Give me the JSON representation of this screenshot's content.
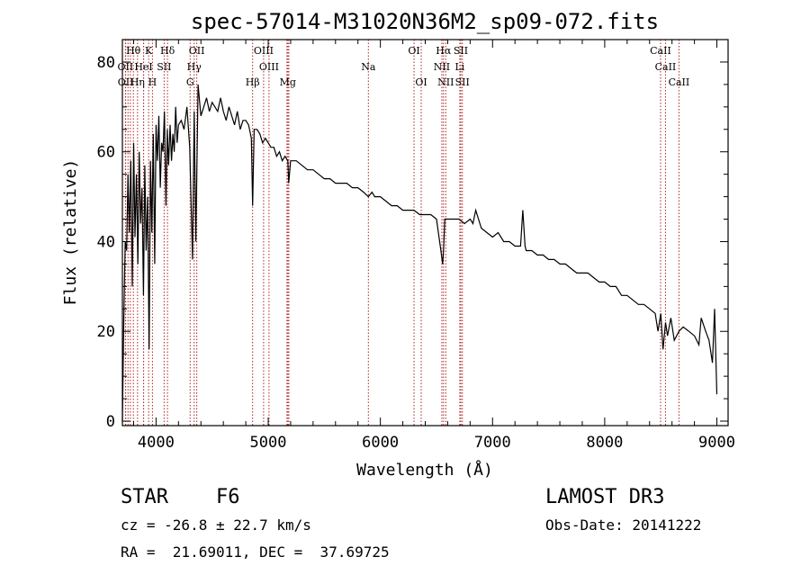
{
  "chart_data": {
    "type": "line",
    "title": "spec-57014-M31020N36M2_sp09-072.fits",
    "xlabel": "Wavelength (Å)",
    "ylabel": "Flux (relative)",
    "xlim": [
      3700,
      9100
    ],
    "ylim": [
      -1,
      85
    ],
    "x_ticks": [
      4000,
      5000,
      6000,
      7000,
      8000,
      9000
    ],
    "y_ticks": [
      0,
      20,
      40,
      60,
      80
    ],
    "grid": false,
    "series": [
      {
        "name": "flux",
        "x": [
          3700,
          3712,
          3725,
          3738,
          3750,
          3762,
          3775,
          3788,
          3800,
          3812,
          3825,
          3838,
          3850,
          3862,
          3875,
          3888,
          3900,
          3912,
          3925,
          3938,
          3950,
          3962,
          3975,
          3988,
          4000,
          4012,
          4025,
          4038,
          4050,
          4062,
          4075,
          4088,
          4100,
          4112,
          4125,
          4138,
          4150,
          4162,
          4175,
          4188,
          4200,
          4225,
          4250,
          4275,
          4300,
          4325,
          4340,
          4355,
          4375,
          4400,
          4425,
          4450,
          4475,
          4500,
          4525,
          4550,
          4575,
          4600,
          4625,
          4650,
          4675,
          4700,
          4725,
          4750,
          4775,
          4800,
          4825,
          4850,
          4861,
          4875,
          4900,
          4925,
          4950,
          4975,
          5000,
          5025,
          5050,
          5075,
          5100,
          5125,
          5150,
          5175,
          5183,
          5200,
          5250,
          5300,
          5350,
          5400,
          5450,
          5500,
          5550,
          5600,
          5650,
          5700,
          5750,
          5800,
          5850,
          5893,
          5925,
          5950,
          6000,
          6050,
          6100,
          6150,
          6200,
          6250,
          6300,
          6350,
          6400,
          6450,
          6500,
          6540,
          6555,
          6563,
          6575,
          6600,
          6650,
          6700,
          6750,
          6800,
          6825,
          6850,
          6900,
          6950,
          7000,
          7050,
          7100,
          7150,
          7200,
          7250,
          7270,
          7290,
          7300,
          7350,
          7400,
          7450,
          7500,
          7550,
          7600,
          7650,
          7700,
          7750,
          7800,
          7850,
          7900,
          7950,
          8000,
          8050,
          8100,
          8150,
          8200,
          8250,
          8300,
          8350,
          8400,
          8450,
          8475,
          8500,
          8520,
          8542,
          8560,
          8590,
          8620,
          8662,
          8700,
          8750,
          8800,
          8840,
          8860,
          8900,
          8930,
          8960,
          8980,
          9000
        ],
        "y": [
          0,
          22,
          40,
          38,
          55,
          42,
          58,
          30,
          62,
          41,
          55,
          35,
          60,
          44,
          52,
          28,
          57,
          38,
          50,
          16,
          58,
          42,
          64,
          35,
          66,
          58,
          68,
          52,
          62,
          60,
          69,
          48,
          65,
          57,
          66,
          58,
          64,
          60,
          70,
          62,
          66,
          67,
          65,
          70,
          61,
          36,
          69,
          40,
          75,
          68,
          70,
          72,
          69,
          71,
          70,
          69,
          72,
          69,
          67,
          70,
          68,
          66,
          69,
          65,
          67,
          67,
          66,
          63,
          48,
          65,
          65,
          64,
          62,
          63,
          62,
          61,
          61,
          59,
          60,
          58,
          59,
          58,
          53,
          58,
          58,
          57,
          56,
          56,
          55,
          54,
          54,
          53,
          53,
          53,
          52,
          52,
          51,
          50,
          51,
          50,
          50,
          49,
          48,
          48,
          47,
          47,
          47,
          46,
          46,
          46,
          45,
          38,
          35,
          38,
          45,
          45,
          45,
          45,
          44,
          45,
          44,
          47,
          43,
          42,
          41,
          42,
          40,
          40,
          39,
          39,
          47,
          39,
          38,
          38,
          37,
          37,
          36,
          36,
          35,
          35,
          34,
          33,
          33,
          33,
          32,
          31,
          31,
          30,
          30,
          28,
          28,
          27,
          26,
          26,
          25,
          24,
          20,
          24,
          16,
          22,
          19,
          23,
          18,
          20,
          21,
          20,
          19,
          17,
          23,
          20,
          18,
          13,
          25,
          6
        ]
      }
    ],
    "line_markers": [
      {
        "label": "Hθ",
        "x": 3798,
        "row": 0
      },
      {
        "label": "K",
        "x": 3934,
        "row": 0
      },
      {
        "label": "Hδ",
        "x": 4102,
        "row": 0
      },
      {
        "label": "OII",
        "x": 4363,
        "row": 0
      },
      {
        "label": "OIII",
        "x": 4959,
        "row": 0
      },
      {
        "label": "OI",
        "x": 6300,
        "row": 0
      },
      {
        "label": "Hα",
        "x": 6563,
        "row": 0
      },
      {
        "label": "SII",
        "x": 6717,
        "row": 0
      },
      {
        "label": "CaII",
        "x": 8498,
        "row": 0
      },
      {
        "label": "OII",
        "x": 3727,
        "row": 1
      },
      {
        "label": "HeI",
        "x": 3889,
        "row": 1
      },
      {
        "label": "SII",
        "x": 4072,
        "row": 1
      },
      {
        "label": "Hγ",
        "x": 4340,
        "row": 1
      },
      {
        "label": "OIII",
        "x": 5007,
        "row": 1
      },
      {
        "label": "Na",
        "x": 5893,
        "row": 1
      },
      {
        "label": "NII",
        "x": 6548,
        "row": 1
      },
      {
        "label": "Li",
        "x": 6708,
        "row": 1
      },
      {
        "label": "CaII",
        "x": 8542,
        "row": 1
      },
      {
        "label": "OII",
        "x": 3729,
        "row": 2
      },
      {
        "label": "Hη",
        "x": 3835,
        "row": 2
      },
      {
        "label": "H",
        "x": 3968,
        "row": 2
      },
      {
        "label": "G",
        "x": 4304,
        "row": 2
      },
      {
        "label": "Hβ",
        "x": 4861,
        "row": 2
      },
      {
        "label": "Mg",
        "x": 5175,
        "row": 2
      },
      {
        "label": "OI",
        "x": 6364,
        "row": 2
      },
      {
        "label": "NII",
        "x": 6583,
        "row": 2
      },
      {
        "label": "SII",
        "x": 6731,
        "row": 2
      },
      {
        "label": "CaII",
        "x": 8662,
        "row": 2
      },
      {
        "label": "",
        "x": 3750,
        "row": 3
      },
      {
        "label": "",
        "x": 3771,
        "row": 3
      },
      {
        "label": "",
        "x": 3889,
        "row": 3
      },
      {
        "label": "",
        "x": 5167,
        "row": 3
      },
      {
        "label": "",
        "x": 5184,
        "row": 3
      }
    ]
  },
  "info": {
    "class_line": "STAR    F6",
    "survey": "LAMOST DR3",
    "cz": "cz = -26.8 ± 22.7 km/s",
    "obs_date": "Obs-Date: 20141222",
    "coords": "RA =  21.69011, DEC =  37.69725"
  },
  "colors": {
    "axis": "#000000",
    "spectrum": "#000000",
    "marker": "#b22222"
  }
}
